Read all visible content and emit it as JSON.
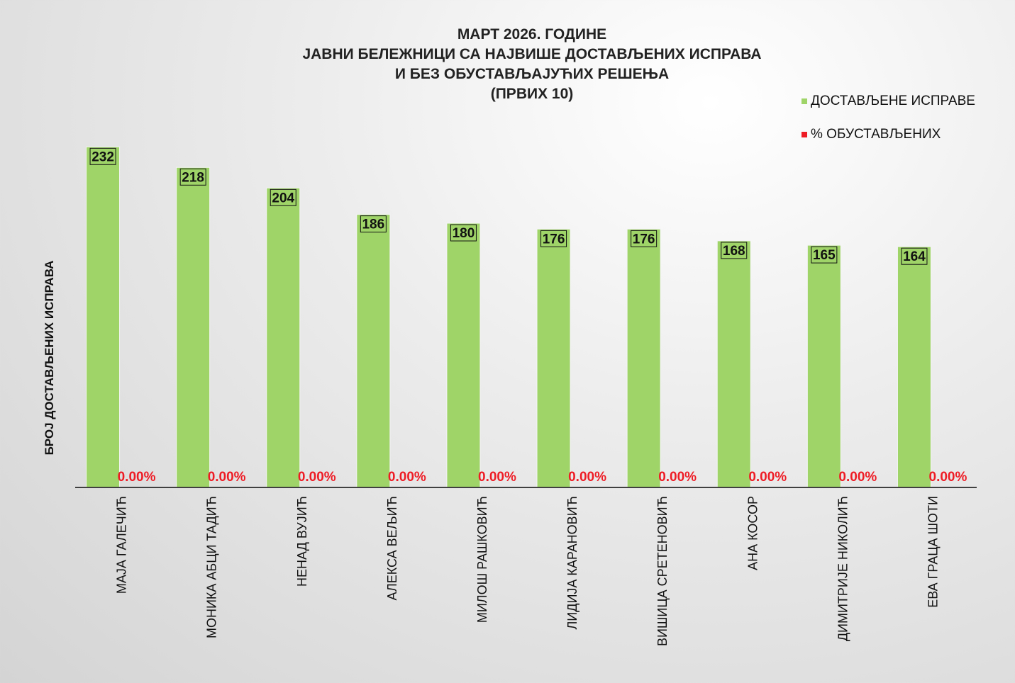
{
  "chart_data": {
    "type": "bar",
    "title_lines": [
      "МАРТ 2026. ГОДИНЕ",
      "ЈАВНИ БЕЛЕЖНИЦИ СА НАЈВИШЕ ДОСТАВЉЕНИХ ИСПРАВА",
      "И БЕЗ ОБУСТАВЉАЈУЋИХ РЕШЕЊА",
      "(ПРВИХ 10)"
    ],
    "ylabel": "БРОЈ ДОСТАВЉЕНИХ ИСПРАВА",
    "xlabel": "",
    "ylim": [
      0,
      250
    ],
    "grid": false,
    "legend_position": "top-right",
    "categories": [
      "МАЈА ГАЛЕЧИЋ",
      "МОНИКА АБЦИ ТАДИЋ",
      "НЕНАД ВУЈИЋ",
      "АЛЕКСА ВЕЉИЋ",
      "МИЛОШ РАШКОВИЋ",
      "ЛИДИЈА КАРАНОВИЋ",
      "ВИШИЦА СРЕТЕНОВИЋ",
      "АНА КОСОР",
      "ДИМИТРИЈЕ НИКОЛИЋ",
      "ЕВА ГРАЦА ШОТИ"
    ],
    "series": [
      {
        "name": "ДОСТАВЉЕНЕ ИСПРАВЕ",
        "color": "#9fd468",
        "values": [
          232,
          218,
          204,
          186,
          180,
          176,
          176,
          168,
          165,
          164
        ],
        "labels": [
          "232",
          "218",
          "204",
          "186",
          "180",
          "176",
          "176",
          "168",
          "165",
          "164"
        ]
      },
      {
        "name": "% ОБУСТАВЉЕНИХ",
        "color": "#ee1c25",
        "values": [
          0,
          0,
          0,
          0,
          0,
          0,
          0,
          0,
          0,
          0
        ],
        "labels": [
          "0.00%",
          "0.00%",
          "0.00%",
          "0.00%",
          "0.00%",
          "0.00%",
          "0.00%",
          "0.00%",
          "0.00%",
          "0.00%"
        ]
      }
    ]
  }
}
